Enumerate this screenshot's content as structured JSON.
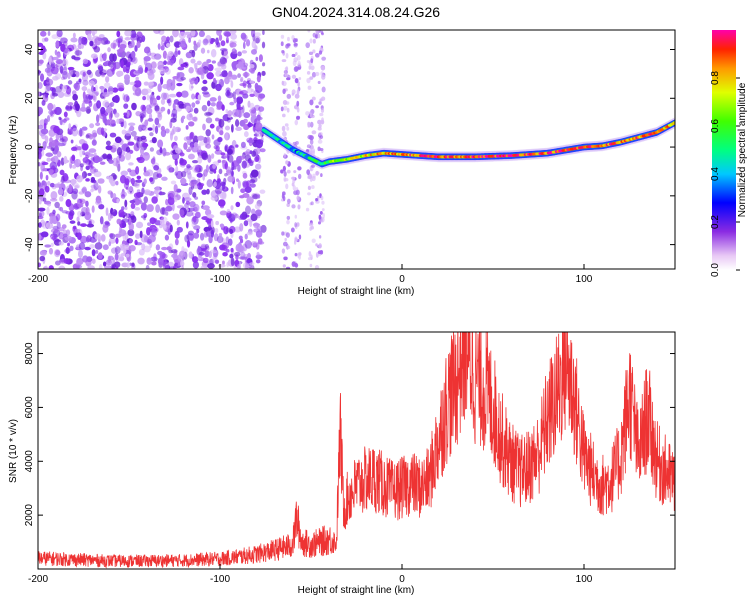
{
  "title": "GN04.2024.314.08.24.G26",
  "chart_data": [
    {
      "type": "heatmap",
      "xlabel": "Height of straight line (km)",
      "ylabel": "Frequency (Hz)",
      "xlim": [
        -200,
        150
      ],
      "ylim": [
        -50,
        48
      ],
      "xticks": [
        -200,
        -100,
        0,
        100
      ],
      "yticks": [
        -40,
        -20,
        0,
        20,
        40
      ],
      "colorbar": {
        "label": "Normalized spectral amplitude",
        "range": [
          0,
          1
        ],
        "ticks": [
          0.0,
          0.2,
          0.4,
          0.6,
          0.8
        ]
      },
      "ridge": {
        "x": [
          -76,
          -72,
          -68,
          -64,
          -60,
          -56,
          -52,
          -48,
          -44,
          -40,
          -30,
          -20,
          -10,
          0,
          20,
          40,
          60,
          80,
          100,
          110,
          120,
          130,
          140,
          150
        ],
        "frequency": [
          7,
          5,
          3,
          1,
          -1,
          -2.5,
          -4,
          -5.5,
          -7,
          -6,
          -5,
          -3.5,
          -2.5,
          -3,
          -4,
          -4,
          -3.5,
          -2.5,
          0,
          0.5,
          2,
          4,
          6,
          10
        ],
        "amplitude": [
          0.55,
          0.5,
          0.45,
          0.4,
          0.4,
          0.4,
          0.45,
          0.5,
          0.55,
          0.6,
          0.7,
          0.75,
          0.8,
          0.85,
          0.9,
          0.92,
          0.95,
          0.9,
          0.9,
          0.9,
          0.85,
          0.85,
          0.85,
          0.8
        ]
      },
      "noise_region_x": [
        -200,
        -76
      ]
    },
    {
      "type": "line",
      "xlabel": "Height of straight line (km)",
      "ylabel": "SNR (10 * v/v)",
      "xlim": [
        -200,
        150
      ],
      "ylim": [
        0,
        8800
      ],
      "xticks": [
        -200,
        -100,
        0,
        100
      ],
      "yticks": [
        2000,
        4000,
        6000,
        8000
      ],
      "series": [
        {
          "color": "#ee3333",
          "x": [
            -200,
            -180,
            -160,
            -140,
            -120,
            -100,
            -90,
            -80,
            -70,
            -65,
            -60,
            -58,
            -55,
            -50,
            -45,
            -40,
            -36,
            -34,
            -32,
            -30,
            -25,
            -20,
            -15,
            -10,
            -5,
            0,
            5,
            10,
            15,
            20,
            25,
            30,
            35,
            40,
            45,
            50,
            55,
            60,
            65,
            70,
            75,
            80,
            85,
            90,
            95,
            100,
            105,
            110,
            115,
            120,
            125,
            130,
            135,
            140,
            145,
            150
          ],
          "y": [
            400,
            350,
            300,
            300,
            320,
            380,
            450,
            550,
            700,
            800,
            900,
            1900,
            1000,
            900,
            1000,
            1100,
            1000,
            5200,
            2200,
            2600,
            3100,
            3300,
            3400,
            3100,
            2900,
            3000,
            3200,
            3000,
            3300,
            4800,
            6200,
            7000,
            8500,
            7200,
            6800,
            6000,
            4800,
            4000,
            3600,
            3800,
            4300,
            5600,
            6400,
            7800,
            6200,
            4200,
            3500,
            3100,
            3300,
            4100,
            6500,
            4200,
            5800,
            4000,
            3600,
            3200
          ]
        }
      ]
    }
  ]
}
